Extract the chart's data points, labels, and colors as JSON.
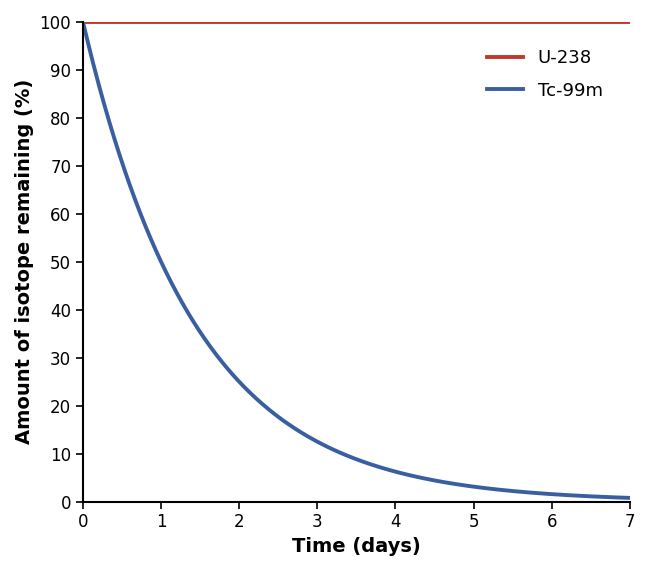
{
  "title": "",
  "xlabel": "Time (days)",
  "ylabel": "Amount of isotope remaining (%)",
  "xlim": [
    0,
    7
  ],
  "ylim": [
    0,
    100
  ],
  "xticks": [
    0,
    1,
    2,
    3,
    4,
    5,
    6,
    7
  ],
  "yticks": [
    0,
    10,
    20,
    30,
    40,
    50,
    60,
    70,
    80,
    90,
    100
  ],
  "u238_color": "#c0392b",
  "tc99m_color": "#3a5fa0",
  "u238_label": "U-238",
  "tc99m_label": "Tc-99m",
  "tc99m_half_life_days": 1.0,
  "line_width": 2.8,
  "legend_fontsize": 13,
  "axis_label_fontsize": 14,
  "tick_fontsize": 12,
  "background_color": "#ffffff"
}
